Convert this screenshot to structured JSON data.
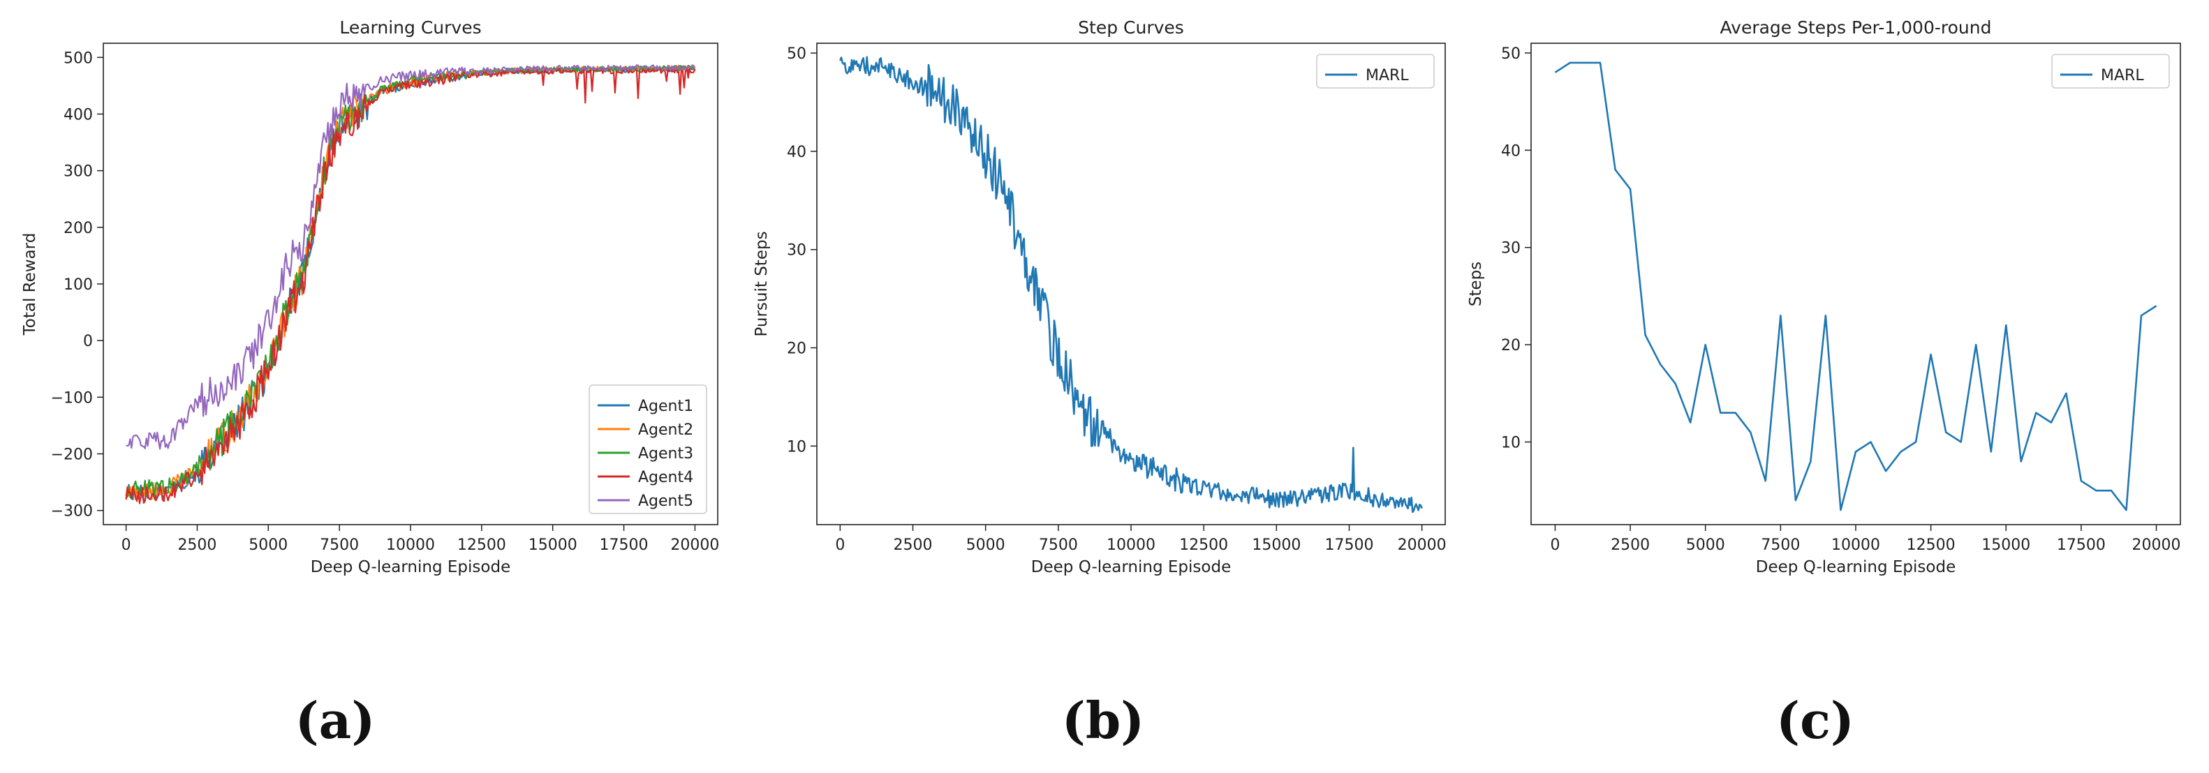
{
  "panel_labels": [
    "(a)",
    "(b)",
    "(c)"
  ],
  "chart_data": [
    {
      "type": "line",
      "title": "Learning Curves",
      "xlabel": "Deep Q-learning Episode",
      "ylabel": "Total Reward",
      "xlim": [
        -800,
        20800
      ],
      "ylim": [
        -325,
        525
      ],
      "xticks": [
        0,
        2500,
        5000,
        7500,
        10000,
        12500,
        15000,
        17500,
        20000
      ],
      "yticks": [
        -300,
        -200,
        -100,
        0,
        100,
        200,
        300,
        400,
        500
      ],
      "legend_position": "lower-right",
      "series": [
        {
          "name": "Agent1",
          "color": "#1f77b4",
          "anchors": [
            [
              0,
              -270
            ],
            [
              1500,
              -265
            ],
            [
              2500,
              -230
            ],
            [
              4000,
              -140
            ],
            [
              5000,
              -50
            ],
            [
              5800,
              70
            ],
            [
              6200,
              110
            ],
            [
              7000,
              300
            ],
            [
              7500,
              380
            ],
            [
              9000,
              440
            ],
            [
              10000,
              455
            ],
            [
              12000,
              470
            ],
            [
              14000,
              477
            ],
            [
              16000,
              478
            ],
            [
              20000,
              480
            ]
          ]
        },
        {
          "name": "Agent2",
          "color": "#ff7f0e",
          "anchors": [
            [
              0,
              -268
            ],
            [
              1500,
              -262
            ],
            [
              2500,
              -228
            ],
            [
              4000,
              -138
            ],
            [
              5000,
              -48
            ],
            [
              5800,
              72
            ],
            [
              6200,
              112
            ],
            [
              7000,
              302
            ],
            [
              7500,
              382
            ],
            [
              9000,
              442
            ],
            [
              10000,
              457
            ],
            [
              12000,
              471
            ],
            [
              14000,
              478
            ],
            [
              16000,
              479
            ],
            [
              20000,
              481
            ]
          ]
        },
        {
          "name": "Agent3",
          "color": "#2ca02c",
          "anchors": [
            [
              0,
              -265
            ],
            [
              1500,
              -258
            ],
            [
              2500,
              -225
            ],
            [
              4000,
              -135
            ],
            [
              5000,
              -45
            ],
            [
              5800,
              75
            ],
            [
              6200,
              115
            ],
            [
              7000,
              305
            ],
            [
              7500,
              385
            ],
            [
              9000,
              443
            ],
            [
              10000,
              458
            ],
            [
              12000,
              472
            ],
            [
              14000,
              478
            ],
            [
              16000,
              479
            ],
            [
              20000,
              481
            ]
          ]
        },
        {
          "name": "Agent4",
          "color": "#d62728",
          "anchors": [
            [
              0,
              -275
            ],
            [
              1500,
              -268
            ],
            [
              2500,
              -235
            ],
            [
              4000,
              -145
            ],
            [
              5000,
              -55
            ],
            [
              5800,
              65
            ],
            [
              6200,
              105
            ],
            [
              7000,
              295
            ],
            [
              7500,
              375
            ],
            [
              9000,
              438
            ],
            [
              10000,
              452
            ],
            [
              12000,
              468
            ],
            [
              14000,
              475
            ],
            [
              16000,
              476
            ],
            [
              20000,
              478
            ]
          ]
        },
        {
          "name": "Agent5",
          "color": "#9467bd",
          "anchors": [
            [
              0,
              -180
            ],
            [
              1500,
              -175
            ],
            [
              2500,
              -110
            ],
            [
              4000,
              -60
            ],
            [
              5000,
              30
            ],
            [
              5800,
              150
            ],
            [
              6200,
              170
            ],
            [
              7000,
              350
            ],
            [
              7500,
              420
            ],
            [
              9000,
              460
            ],
            [
              10000,
              468
            ],
            [
              12000,
              475
            ],
            [
              14000,
              480
            ],
            [
              16000,
              481
            ],
            [
              20000,
              482
            ]
          ]
        }
      ]
    },
    {
      "type": "line",
      "title": "Step Curves",
      "xlabel": "Deep Q-learning Episode",
      "ylabel": "Pursuit Steps",
      "xlim": [
        -800,
        20800
      ],
      "ylim": [
        2,
        51
      ],
      "xticks": [
        0,
        2500,
        5000,
        7500,
        10000,
        12500,
        15000,
        17500,
        20000
      ],
      "yticks": [
        10,
        20,
        30,
        40,
        50
      ],
      "legend_position": "upper-right",
      "series": [
        {
          "name": "MARL",
          "color": "#1f77b4",
          "anchors": [
            [
              0,
              49
            ],
            [
              1500,
              48.5
            ],
            [
              2500,
              47
            ],
            [
              3500,
              45.5
            ],
            [
              4500,
              42
            ],
            [
              5500,
              37
            ],
            [
              6500,
              28
            ],
            [
              7500,
              19
            ],
            [
              8500,
              13
            ],
            [
              9500,
              10
            ],
            [
              10500,
              8
            ],
            [
              11500,
              6.5
            ],
            [
              12500,
              5.5
            ],
            [
              14000,
              5
            ],
            [
              15000,
              4.5
            ],
            [
              16500,
              5
            ],
            [
              17500,
              5.5
            ],
            [
              18500,
              4.5
            ],
            [
              20000,
              4
            ]
          ]
        }
      ]
    },
    {
      "type": "line",
      "title": "Average Steps Per-1,000-round",
      "xlabel": "Deep Q-learning Episode",
      "ylabel": "Steps",
      "xlim": [
        -800,
        20800
      ],
      "ylim": [
        1.5,
        51
      ],
      "xticks": [
        0,
        2500,
        5000,
        7500,
        10000,
        12500,
        15000,
        17500,
        20000
      ],
      "yticks": [
        10,
        20,
        30,
        40,
        50
      ],
      "legend_position": "upper-right",
      "series": [
        {
          "name": "MARL",
          "color": "#1f77b4",
          "x": [
            0,
            500,
            1000,
            1500,
            2000,
            2500,
            3000,
            3500,
            4000,
            4500,
            5000,
            5500,
            6000,
            6500,
            7000,
            7500,
            8000,
            8500,
            9000,
            9500,
            10000,
            10500,
            11000,
            11500,
            12000,
            12500,
            13000,
            13500,
            14000,
            14500,
            15000,
            15500,
            16000,
            16500,
            17000,
            17500,
            18000,
            18500,
            19000,
            19500,
            20000
          ],
          "y": [
            48,
            49,
            49,
            49,
            38,
            36,
            21,
            18,
            16,
            12,
            20,
            13,
            13,
            11,
            6,
            23,
            4,
            8,
            23,
            3,
            9,
            10,
            7,
            9,
            10,
            19,
            11,
            10,
            20,
            9,
            22,
            8,
            13,
            12,
            15,
            6,
            5,
            5,
            3,
            23,
            24
          ]
        }
      ]
    }
  ]
}
